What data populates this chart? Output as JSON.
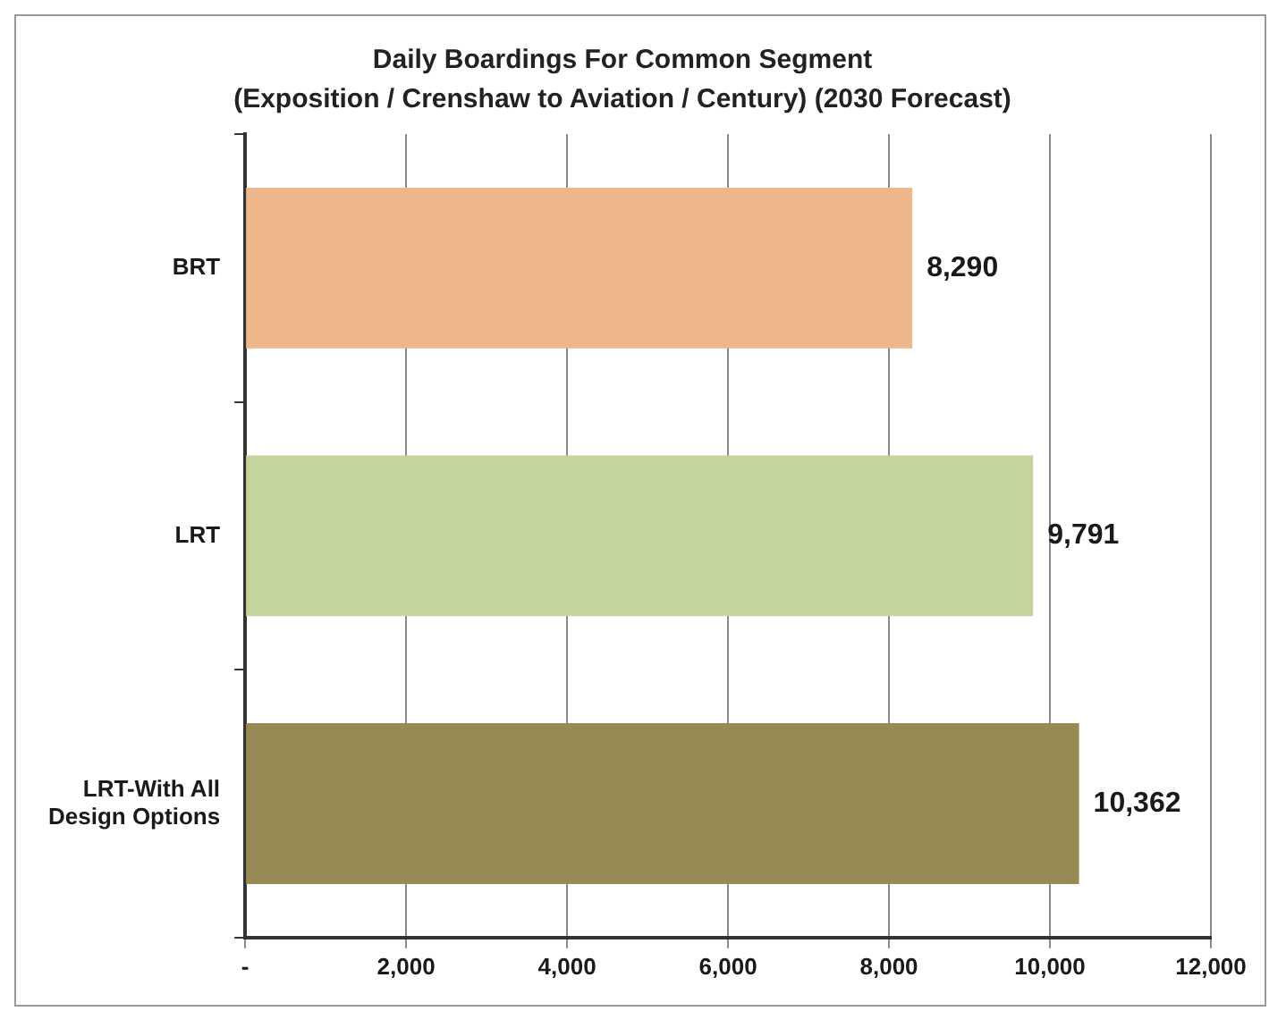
{
  "chart_data": {
    "type": "bar",
    "orientation": "horizontal",
    "title": "Daily Boardings For Common Segment",
    "subtitle": "(Exposition / Crenshaw to Aviation / Century) (2030 Forecast)",
    "categories": [
      "BRT",
      "LRT",
      "LRT-With All Design Options"
    ],
    "values": [
      8290,
      9791,
      10362
    ],
    "colors": [
      "#edb78b",
      "#c4d59b",
      "#968b52"
    ],
    "value_labels": [
      "8,290",
      "9,791",
      "10,362"
    ],
    "xlim": [
      0,
      12000
    ],
    "xticks": [
      {
        "value": 0,
        "label": "-"
      },
      {
        "value": 2000,
        "label": "2,000"
      },
      {
        "value": 4000,
        "label": "4,000"
      },
      {
        "value": 6000,
        "label": "6,000"
      },
      {
        "value": 8000,
        "label": "8,000"
      },
      {
        "value": 10000,
        "label": "10,000"
      },
      {
        "value": 12000,
        "label": "12,000"
      }
    ],
    "grid": "x",
    "legend": false
  }
}
